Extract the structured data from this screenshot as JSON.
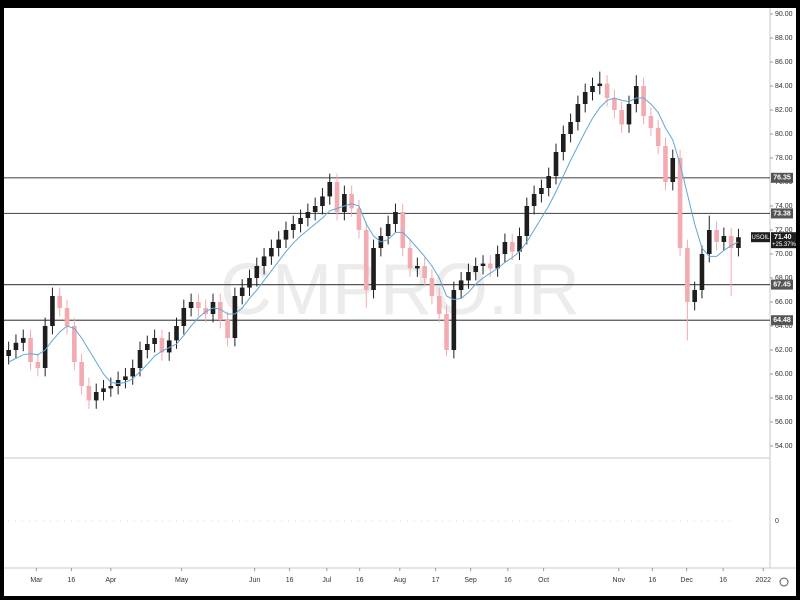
{
  "chart_data": {
    "type": "candlestick",
    "watermark": "CMPRO.IR",
    "series": {
      "name": "USOIL",
      "up_color": "#1e1e1e",
      "down_color": "#f3aab0",
      "open": [
        61.5,
        62,
        62.6,
        63,
        61,
        60.5,
        64,
        66.5,
        65.5,
        64,
        61,
        59,
        57.8,
        58.5,
        58.8,
        59,
        59.5,
        59.8,
        60.5,
        62,
        62.5,
        63,
        61.8,
        62.8,
        64,
        65.5,
        66,
        65.5,
        65,
        66,
        64.5,
        63,
        66.5,
        67.2,
        68,
        69,
        69.8,
        70.5,
        71.2,
        72,
        72.5,
        73,
        73.5,
        74,
        74.8,
        76,
        73.5,
        75,
        73.8,
        72,
        67,
        70.5,
        71.5,
        72.5,
        73.5,
        70.5,
        68.8,
        69,
        68,
        66.5,
        65,
        62,
        67,
        67.8,
        68.5,
        69,
        69.2,
        68.8,
        70,
        71,
        70.2,
        71.5,
        74,
        75,
        75.5,
        76.5,
        78.5,
        80,
        81,
        82.5,
        83.5,
        84,
        84.2,
        83,
        82,
        80.8,
        82.5,
        84,
        81.5,
        80.5,
        79,
        76,
        78,
        70.5,
        66,
        67,
        70,
        72,
        71,
        71.5,
        70.5
      ],
      "high": [
        62.7,
        63.3,
        63.7,
        63.7,
        61.7,
        64.7,
        67.2,
        67.2,
        66.2,
        64.7,
        61.7,
        59.7,
        59.2,
        59.5,
        59.7,
        60.2,
        60.5,
        61.2,
        62.7,
        63.2,
        63.7,
        63.7,
        63.5,
        64.7,
        66.2,
        66.7,
        66.7,
        66.2,
        66.7,
        66.7,
        65.2,
        67.2,
        67.9,
        68.7,
        69.7,
        70.5,
        71.2,
        71.9,
        72.7,
        73.2,
        73.7,
        74.2,
        74.7,
        75.5,
        76.7,
        76.7,
        75.7,
        75.7,
        74.5,
        72.7,
        71.2,
        72.2,
        73.2,
        74.2,
        74.2,
        71.2,
        69.7,
        69.7,
        68.7,
        67.2,
        65.7,
        67.7,
        68.5,
        69.2,
        69.7,
        69.9,
        69.9,
        70.7,
        71.7,
        71.7,
        72.2,
        74.7,
        75.7,
        76.2,
        77.2,
        79.2,
        80.7,
        81.7,
        83.2,
        84.2,
        84.7,
        85.2,
        84.9,
        83.7,
        82.7,
        83.2,
        84.9,
        84.7,
        82.2,
        81.2,
        79.7,
        78.7,
        78.7,
        71.2,
        67.7,
        70.7,
        73.2,
        72.7,
        72.2,
        72.2,
        72.1
      ],
      "low": [
        60.8,
        61.3,
        61.9,
        60.3,
        59.8,
        59.8,
        63.3,
        64.8,
        63.3,
        60.3,
        58.3,
        57.1,
        57.1,
        57.8,
        58.1,
        58.3,
        58.8,
        59.1,
        59.8,
        61.3,
        61.8,
        61.1,
        61.1,
        62.1,
        63.3,
        64.8,
        64.8,
        64.3,
        64.3,
        63.8,
        62.3,
        62.3,
        65.8,
        66.5,
        67.3,
        68.3,
        69.1,
        69.8,
        70.5,
        71.3,
        71.8,
        72.3,
        72.8,
        73.3,
        74.1,
        72.8,
        72.8,
        73.1,
        71.3,
        65.5,
        66.3,
        69.8,
        70.8,
        71.8,
        69.8,
        68.1,
        68.1,
        67.3,
        65.8,
        64.3,
        61.5,
        61.3,
        66.3,
        67.1,
        67.8,
        68.3,
        68.1,
        68.1,
        69.3,
        69.5,
        69.5,
        70.8,
        73.3,
        74.3,
        74.8,
        75.8,
        77.8,
        79.3,
        80.3,
        81.8,
        82.8,
        83.3,
        82.3,
        81.3,
        80.1,
        80.1,
        81.8,
        80.8,
        79.8,
        78.3,
        75.3,
        75.3,
        69.8,
        62.8,
        65.3,
        66.3,
        69.3,
        70.3,
        70.3,
        66.5,
        69.8
      ],
      "close": [
        62,
        62.6,
        63,
        61,
        60.5,
        64,
        66.5,
        65.5,
        64,
        61,
        59,
        57.8,
        58.5,
        58.8,
        59,
        59.5,
        59.8,
        60.5,
        62,
        62.5,
        63,
        61.8,
        62.8,
        64,
        65.5,
        66,
        65.5,
        65,
        66,
        64.5,
        63,
        66.5,
        67.2,
        68,
        69,
        69.8,
        70.5,
        71.2,
        72,
        72.5,
        73,
        73.5,
        74,
        74.8,
        76,
        73.5,
        75,
        73.8,
        72,
        67,
        70.5,
        71.5,
        72.5,
        73.5,
        70.5,
        68.8,
        69,
        68,
        66.5,
        65,
        62,
        67,
        67.8,
        68.5,
        69,
        69.2,
        68.8,
        70,
        71,
        70.2,
        71.5,
        74,
        75,
        75.5,
        76.5,
        78.5,
        80,
        81,
        82.5,
        83.5,
        84,
        84.2,
        83,
        82,
        80.8,
        82.5,
        84,
        81.5,
        80.5,
        79,
        76,
        78,
        70.5,
        66,
        67,
        70,
        72,
        71,
        71.5,
        70.5,
        71.4
      ]
    },
    "ma": {
      "color": "#5fa8d8",
      "values": [
        61,
        61.3,
        61.6,
        61.7,
        61.6,
        62,
        62.8,
        63.5,
        64,
        63.8,
        63,
        62,
        61,
        60,
        59.3,
        59.2,
        59.3,
        59.6,
        60.2,
        60.8,
        61.5,
        61.9,
        62.2,
        62.5,
        63.2,
        64,
        64.7,
        65.2,
        65.5,
        65.4,
        65,
        65,
        65.5,
        66.3,
        67,
        67.8,
        68.6,
        69.4,
        70.2,
        70.9,
        71.5,
        72,
        72.5,
        73,
        73.6,
        73.8,
        74,
        74.2,
        74,
        72.5,
        71.5,
        71,
        71.2,
        71.8,
        71.8,
        71.2,
        70.5,
        69.8,
        69,
        68,
        66.5,
        66.2,
        66.3,
        66.8,
        67.5,
        68,
        68.4,
        68.8,
        69.3,
        69.7,
        70.2,
        71,
        72,
        73,
        74,
        75.2,
        76.5,
        77.8,
        79,
        80.2,
        81.3,
        82.2,
        82.8,
        83,
        82.8,
        82.7,
        83,
        83,
        82.5,
        81.8,
        80.5,
        79.5,
        77.5,
        75,
        72.5,
        70.5,
        69.8,
        69.8,
        70.3,
        70.7,
        71
      ]
    },
    "levels": [
      76.35,
      73.38,
      67.45,
      64.48
    ],
    "last_price": {
      "value": 71.4,
      "label": "71.40"
    },
    "change_label": "+25.37%",
    "ylim": [
      53,
      90.5
    ],
    "yticks": [
      {
        "value": 54,
        "label": "54.00"
      },
      {
        "value": 56,
        "label": "56.00"
      },
      {
        "value": 58,
        "label": "58.00"
      },
      {
        "value": 60,
        "label": "60.00"
      },
      {
        "value": 62,
        "label": "62.00"
      },
      {
        "value": 64,
        "label": "64.00"
      },
      {
        "value": 66,
        "label": "66.00"
      },
      {
        "value": 68,
        "label": "68.00"
      },
      {
        "value": 70,
        "label": "70.00"
      },
      {
        "value": 72,
        "label": "72.00"
      },
      {
        "value": 74,
        "label": "74.00"
      },
      {
        "value": 76,
        "label": "76.00"
      },
      {
        "value": 78,
        "label": "78.00"
      },
      {
        "value": 80,
        "label": "80.00"
      },
      {
        "value": 82,
        "label": "82.00"
      },
      {
        "value": 84,
        "label": "84.00"
      },
      {
        "value": 86,
        "label": "86.00"
      },
      {
        "value": 88,
        "label": "88.00"
      },
      {
        "value": 90,
        "label": "90.00"
      }
    ],
    "xlim": [
      -0.5,
      103.5
    ],
    "xticks": [
      {
        "value": 3.8,
        "label": "Mar"
      },
      {
        "value": 8.6,
        "label": "16"
      },
      {
        "value": 14,
        "label": "Apr"
      },
      {
        "value": 23.7,
        "label": "May"
      },
      {
        "value": 33.7,
        "label": "Jun"
      },
      {
        "value": 38.5,
        "label": "16"
      },
      {
        "value": 43.6,
        "label": "Jul"
      },
      {
        "value": 48.1,
        "label": "16"
      },
      {
        "value": 53.6,
        "label": "Aug"
      },
      {
        "value": 58.5,
        "label": "17"
      },
      {
        "value": 63.3,
        "label": "Sep"
      },
      {
        "value": 68.4,
        "label": "16"
      },
      {
        "value": 73.3,
        "label": "Oct"
      },
      {
        "value": 83.6,
        "label": "Nov"
      },
      {
        "value": 88.2,
        "label": "16"
      },
      {
        "value": 92.9,
        "label": "Dec"
      },
      {
        "value": 97.9,
        "label": "16"
      },
      {
        "value": 103.4,
        "label": "2022"
      }
    ],
    "lower_pane": {
      "yticks": [
        0
      ]
    }
  }
}
